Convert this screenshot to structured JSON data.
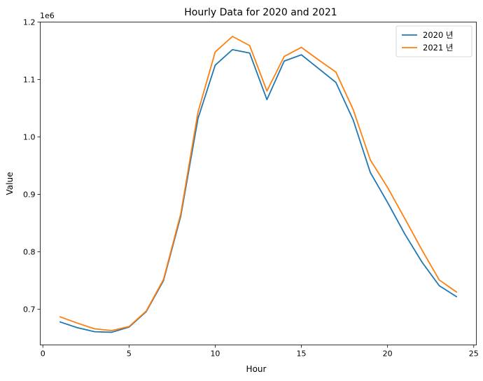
{
  "chart_data": {
    "type": "line",
    "title": "Hourly Data for 2020 and 2021",
    "xlabel": "Hour",
    "ylabel": "Value",
    "y_offset_label": "1e6",
    "xlim": [
      -0.15,
      25.15
    ],
    "ylim": [
      638000,
      1200000
    ],
    "x_ticks": [
      0,
      5,
      10,
      15,
      20,
      25
    ],
    "x_tick_labels": [
      "0",
      "5",
      "10",
      "15",
      "20",
      "25"
    ],
    "y_ticks": [
      700000,
      800000,
      900000,
      1000000,
      1100000,
      1200000
    ],
    "y_tick_labels": [
      "0.7",
      "0.8",
      "0.9",
      "1.0",
      "1.1",
      "1.2"
    ],
    "grid": false,
    "legend_position": "top-right",
    "x": [
      1,
      2,
      3,
      4,
      5,
      6,
      7,
      8,
      9,
      10,
      11,
      12,
      13,
      14,
      15,
      16,
      17,
      18,
      19,
      20,
      21,
      22,
      23,
      24
    ],
    "series": [
      {
        "name": "2020 년",
        "color": "#1f77b4",
        "values": [
          678000,
          668000,
          661000,
          660000,
          669000,
          696000,
          750000,
          862000,
          1032000,
          1125000,
          1152000,
          1146000,
          1065000,
          1132000,
          1143000,
          1119000,
          1095000,
          1030000,
          938000,
          886000,
          831000,
          782000,
          741000,
          722000
        ]
      },
      {
        "name": "2021 년",
        "color": "#ff7f0e",
        "values": [
          687000,
          676000,
          666000,
          663000,
          670000,
          697000,
          752000,
          866000,
          1043000,
          1148000,
          1175000,
          1159000,
          1080000,
          1140000,
          1156000,
          1134000,
          1113000,
          1048000,
          960000,
          912000,
          858000,
          803000,
          751000,
          730000
        ]
      }
    ]
  }
}
